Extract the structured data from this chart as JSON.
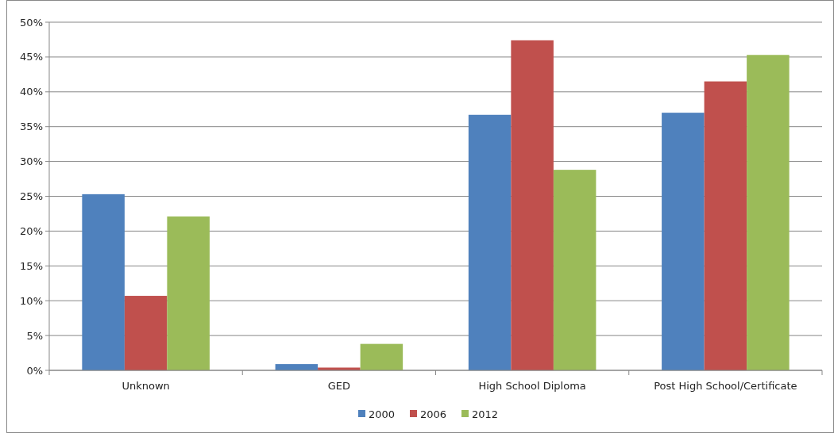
{
  "chart_data": {
    "type": "bar",
    "categories": [
      "Unknown",
      "GED",
      "High School Diploma",
      "Post High School/Certificate"
    ],
    "series": [
      {
        "name": "2000",
        "color": "#4f81bd",
        "values": [
          25.3,
          0.9,
          36.7,
          37.0
        ]
      },
      {
        "name": "2006",
        "color": "#c0504d",
        "values": [
          10.7,
          0.4,
          47.4,
          41.5
        ]
      },
      {
        "name": "2012",
        "color": "#9bbb59",
        "values": [
          22.1,
          3.8,
          28.8,
          45.3
        ]
      }
    ],
    "ylim": [
      0,
      50
    ],
    "yticks": [
      {
        "value": 0,
        "label": "0%"
      },
      {
        "value": 5,
        "label": "5%"
      },
      {
        "value": 10,
        "label": "10%"
      },
      {
        "value": 15,
        "label": "15%"
      },
      {
        "value": 20,
        "label": "20%"
      },
      {
        "value": 25,
        "label": "25%"
      },
      {
        "value": 30,
        "label": "30%"
      },
      {
        "value": 35,
        "label": "35%"
      },
      {
        "value": 40,
        "label": "40%"
      },
      {
        "value": 45,
        "label": "45%"
      },
      {
        "value": 50,
        "label": "50%"
      }
    ],
    "grid": "y",
    "legend": "bottom"
  }
}
